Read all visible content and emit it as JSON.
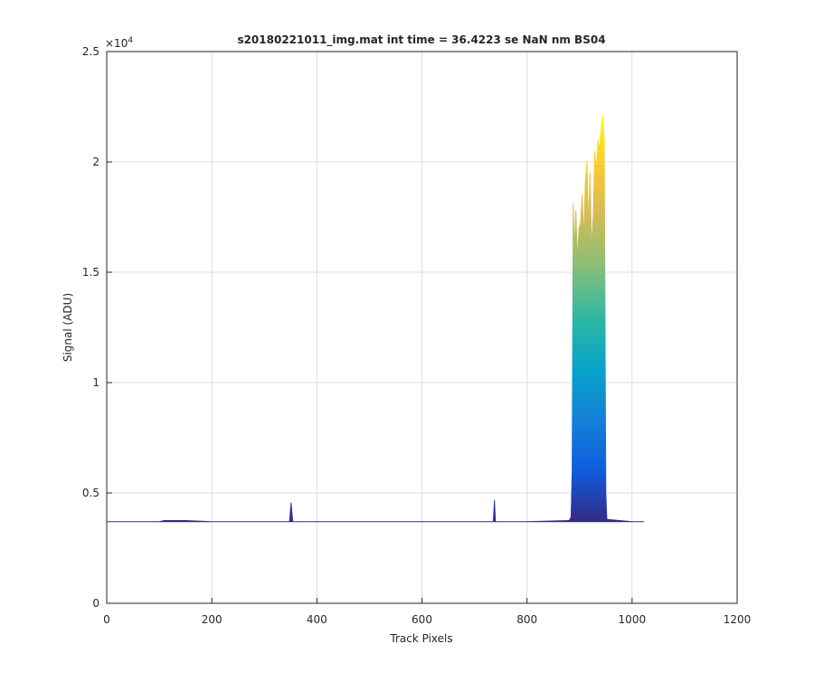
{
  "chart_data": {
    "type": "area",
    "title": "s20180221011_img.mat int time = 36.4223 se  NaN nm BS04",
    "x_label": "Track Pixels",
    "y_label": "Signal (ADU)",
    "y_multiplier_base": "×10",
    "y_multiplier_exponent": 4,
    "x": [
      0,
      100,
      110,
      150,
      200,
      348,
      351,
      354,
      400,
      600,
      736,
      738,
      740,
      800,
      880,
      884,
      886,
      888,
      890,
      893,
      896,
      899,
      902,
      905,
      908,
      911,
      914,
      917,
      920,
      923,
      926,
      929,
      932,
      935,
      938,
      941,
      944,
      947,
      950,
      952,
      1000,
      1022
    ],
    "values": [
      0.37,
      0.37,
      0.375,
      0.375,
      0.37,
      0.37,
      0.455,
      0.37,
      0.37,
      0.37,
      0.37,
      0.467,
      0.37,
      0.37,
      0.375,
      0.39,
      0.6,
      1.81,
      1.6,
      1.78,
      1.55,
      1.7,
      1.72,
      1.85,
      1.65,
      1.9,
      2.0,
      1.7,
      1.95,
      1.6,
      1.75,
      2.05,
      1.95,
      2.1,
      2.05,
      2.15,
      2.21,
      2.1,
      0.5,
      0.38,
      0.37,
      0.37
    ],
    "colormap": [
      "#352a87",
      "#0f5cdd",
      "#1481d6",
      "#06a4ca",
      "#2eb7a4",
      "#87bf77",
      "#d1bb59",
      "#fec832",
      "#f9fb0e"
    ],
    "xlim": [
      0,
      1200
    ],
    "xticks": [
      0,
      200,
      400,
      600,
      800,
      1000,
      1200
    ],
    "ylim": [
      0,
      2.5
    ],
    "yticks": [
      0,
      0.5,
      1,
      1.5,
      2,
      2.5
    ],
    "grid": true
  }
}
